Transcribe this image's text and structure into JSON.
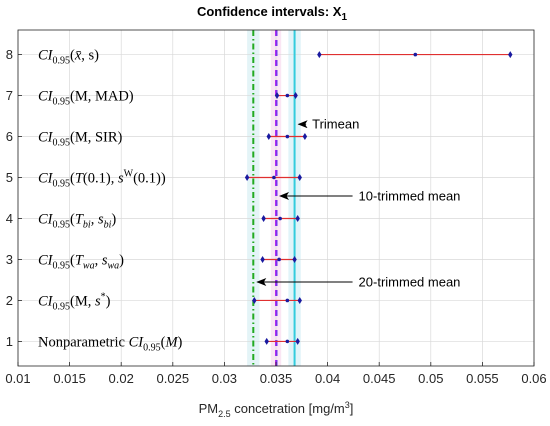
{
  "chart_data": {
    "type": "scatter",
    "title": "Confidence intervals: X",
    "title_sub": "1",
    "xlabel": {
      "pre": "PM",
      "sub": "2.5",
      "mid": " concetration [mg/m",
      "sup": "3",
      "post": "]"
    },
    "xlim": [
      0.01,
      0.06
    ],
    "ylim": [
      0.4,
      8.6
    ],
    "xticks": [
      "0.01",
      "0.015",
      "0.02",
      "0.025",
      "0.03",
      "0.035",
      "0.04",
      "0.045",
      "0.05",
      "0.055",
      "0.06"
    ],
    "yticks": [
      "1",
      "2",
      "3",
      "4",
      "5",
      "6",
      "7",
      "8"
    ],
    "grid": true,
    "intervals": [
      {
        "y": 1,
        "lower": 0.0341,
        "center": 0.0361,
        "upper": 0.0371
      },
      {
        "y": 2,
        "lower": 0.0329,
        "center": 0.0361,
        "upper": 0.0373
      },
      {
        "y": 3,
        "lower": 0.0337,
        "center": 0.0353,
        "upper": 0.0368
      },
      {
        "y": 4,
        "lower": 0.0338,
        "center": 0.0354,
        "upper": 0.0371
      },
      {
        "y": 5,
        "lower": 0.0322,
        "center": 0.0348,
        "upper": 0.0373
      },
      {
        "y": 6,
        "lower": 0.0343,
        "center": 0.0361,
        "upper": 0.0378
      },
      {
        "y": 7,
        "lower": 0.0351,
        "center": 0.0361,
        "upper": 0.0369
      },
      {
        "y": 8,
        "lower": 0.0392,
        "center": 0.0485,
        "upper": 0.0577
      }
    ],
    "vertical_lines": [
      {
        "x": 0.0328,
        "color": "#22aa22",
        "style": "dashdot",
        "band": [
          0.0322,
          0.0334
        ],
        "band_color": "#d8f0f4"
      },
      {
        "x": 0.035,
        "color": "#ee22ee",
        "style": "dashed",
        "band": [
          0.0345,
          0.0355
        ],
        "band_color": "#f8dcf0"
      },
      {
        "x": 0.035,
        "color": "#7733ee",
        "style": "dashed",
        "band": null,
        "band_color": null
      },
      {
        "x": 0.0368,
        "color": "#33ccdd",
        "style": "solid",
        "band": [
          0.0362,
          0.0374
        ],
        "band_color": "#d4f0f6"
      }
    ],
    "colors": {
      "interval_line": "#e03030",
      "endpoint_marker": "#1a1aa0",
      "center_marker": "#1a1aa0",
      "annotation_arrow": "#000000"
    },
    "ci_labels": [
      {
        "y": 8,
        "parts": [
          {
            "t": "CI",
            "s": "it"
          },
          {
            "t": "0.95",
            "s": "sub"
          },
          {
            "t": "(",
            "s": ""
          },
          {
            "t": "x̄",
            "s": "it"
          },
          {
            "t": ", s)",
            "s": ""
          }
        ]
      },
      {
        "y": 7,
        "parts": [
          {
            "t": "CI",
            "s": "it"
          },
          {
            "t": "0.95",
            "s": "sub"
          },
          {
            "t": "(M, MAD)",
            "s": ""
          }
        ]
      },
      {
        "y": 6,
        "parts": [
          {
            "t": "CI",
            "s": "it"
          },
          {
            "t": "0.95",
            "s": "sub"
          },
          {
            "t": "(M, SIR)",
            "s": ""
          }
        ]
      },
      {
        "y": 5,
        "parts": [
          {
            "t": "CI",
            "s": "it"
          },
          {
            "t": "0.95",
            "s": "sub"
          },
          {
            "t": "(",
            "s": ""
          },
          {
            "t": "T",
            "s": "it"
          },
          {
            "t": "(0.1), ",
            "s": ""
          },
          {
            "t": "s",
            "s": "it"
          },
          {
            "t": "W",
            "s": "sup"
          },
          {
            "t": "(0.1))",
            "s": ""
          }
        ]
      },
      {
        "y": 4,
        "parts": [
          {
            "t": "CI",
            "s": "it"
          },
          {
            "t": "0.95",
            "s": "sub"
          },
          {
            "t": "(",
            "s": ""
          },
          {
            "t": "T",
            "s": "it"
          },
          {
            "t": "bi",
            "s": "subit"
          },
          {
            "t": ", ",
            "s": ""
          },
          {
            "t": "s",
            "s": "it"
          },
          {
            "t": "bi",
            "s": "subit"
          },
          {
            "t": ")",
            "s": ""
          }
        ]
      },
      {
        "y": 3,
        "parts": [
          {
            "t": "CI",
            "s": "it"
          },
          {
            "t": "0.95",
            "s": "sub"
          },
          {
            "t": "(",
            "s": ""
          },
          {
            "t": "T",
            "s": "it"
          },
          {
            "t": "wa",
            "s": "subit"
          },
          {
            "t": ", ",
            "s": ""
          },
          {
            "t": "s",
            "s": "it"
          },
          {
            "t": "wa",
            "s": "subit"
          },
          {
            "t": ")",
            "s": ""
          }
        ]
      },
      {
        "y": 2,
        "parts": [
          {
            "t": "CI",
            "s": "it"
          },
          {
            "t": "0.95",
            "s": "sub"
          },
          {
            "t": "(M, ",
            "s": ""
          },
          {
            "t": "s",
            "s": "it"
          },
          {
            "t": "*",
            "s": "sup"
          },
          {
            "t": ")",
            "s": ""
          }
        ]
      },
      {
        "y": 1,
        "parts": [
          {
            "t": "Nonparametric ",
            "s": ""
          },
          {
            "t": "CI",
            "s": "it"
          },
          {
            "t": "0.95",
            "s": "sub"
          },
          {
            "t": "(",
            "s": ""
          },
          {
            "t": "M",
            "s": "it"
          },
          {
            "t": ")",
            "s": ""
          }
        ]
      }
    ],
    "annotations": [
      {
        "text": "Trimean",
        "arrow_to_x": 0.0368,
        "y": 6.3,
        "text_x": 0.0385
      },
      {
        "text": "10-trimmed mean",
        "arrow_to_x": 0.035,
        "y": 4.55,
        "text_x": 0.043
      },
      {
        "text": "20-trimmed mean",
        "arrow_to_x": 0.0328,
        "y": 2.45,
        "text_x": 0.043
      }
    ]
  }
}
